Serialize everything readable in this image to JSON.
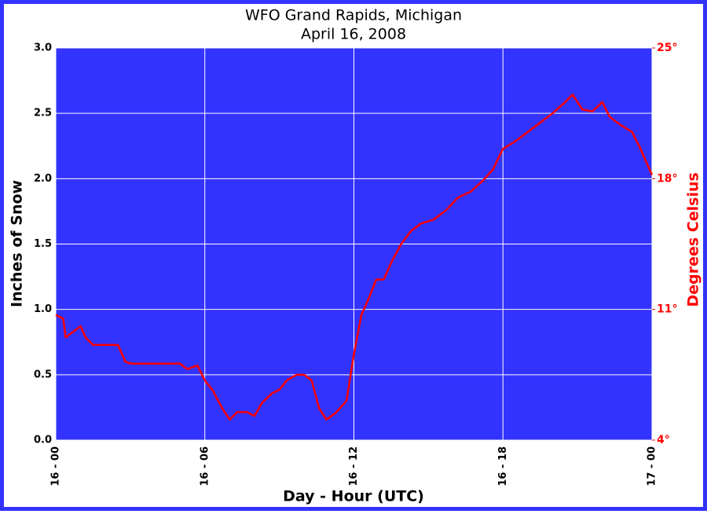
{
  "chart_data": {
    "type": "line",
    "title": "WFO Grand Rapids, Michigan",
    "subtitle": "April 16, 2008",
    "xlabel": "Day - Hour (UTC)",
    "ylabel": "Inches of Snow",
    "y2label": "Degrees Celsius",
    "grid": true,
    "xlim": [
      0,
      24
    ],
    "xticks": [
      {
        "value": 0,
        "label": "16 - 00"
      },
      {
        "value": 6,
        "label": "16 - 06"
      },
      {
        "value": 12,
        "label": "16 - 12"
      },
      {
        "value": 18,
        "label": "16 - 18"
      },
      {
        "value": 24,
        "label": "17 - 00"
      }
    ],
    "ylim": [
      0,
      3
    ],
    "yticks": [
      {
        "value": 0,
        "label": "0.0"
      },
      0.5,
      {
        "value": 1,
        "label": "1.0"
      },
      1.5,
      {
        "value": 2,
        "label": "2.0"
      },
      2.5,
      {
        "value": 3,
        "label": "3.0"
      }
    ],
    "y2lim": [
      4,
      25
    ],
    "y2ticks": [
      {
        "value": 4,
        "label": "4°"
      },
      {
        "value": 11,
        "label": "11°"
      },
      {
        "value": 18,
        "label": "18°"
      },
      {
        "value": 25,
        "label": "25°"
      }
    ],
    "x": [
      0,
      0.3,
      0.4,
      1,
      1.2,
      1.5,
      2,
      2.5,
      2.8,
      3,
      3.3,
      4,
      5,
      5.3,
      5.7,
      6,
      6.3,
      6.7,
      7,
      7.3,
      7.7,
      8,
      8.3,
      8.7,
      9,
      9.3,
      9.7,
      10,
      10.3,
      10.6,
      10.9,
      11.3,
      11.7,
      12,
      12.3,
      12.6,
      12.9,
      13.2,
      13.5,
      13.9,
      14.3,
      14.7,
      15.2,
      15.7,
      16.2,
      16.7,
      17.2,
      17.6,
      18,
      18.5,
      19,
      19.5,
      20,
      20.5,
      20.8,
      21.2,
      21.6,
      22,
      22.3,
      22.7,
      23.2,
      23.5,
      24
    ],
    "series": [
      {
        "color": "#ff0000",
        "axis": "y2",
        "values": [
          10.7,
          10.5,
          9.5,
          10.1,
          9.5,
          9.1,
          9.1,
          9.1,
          8.2,
          8.1,
          8.1,
          8.1,
          8.1,
          7.8,
          8.0,
          7.2,
          6.7,
          5.7,
          5.1,
          5.5,
          5.5,
          5.3,
          6.0,
          6.5,
          6.7,
          7.2,
          7.5,
          7.5,
          7.2,
          5.7,
          5.1,
          5.5,
          6.1,
          8.6,
          10.7,
          11.6,
          12.6,
          12.6,
          13.5,
          14.5,
          15.2,
          15.6,
          15.8,
          16.3,
          17.0,
          17.3,
          17.9,
          18.5,
          19.6,
          20.0,
          20.5,
          21.0,
          21.5,
          22.1,
          22.5,
          21.7,
          21.6,
          22.1,
          21.3,
          20.9,
          20.5,
          19.7,
          18.2
        ]
      }
    ]
  }
}
